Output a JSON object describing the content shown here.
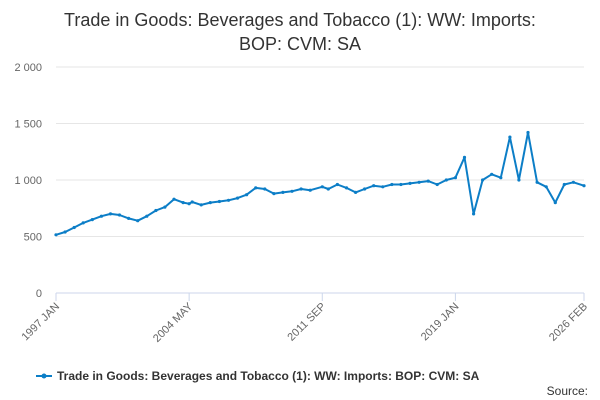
{
  "chart_data": {
    "type": "line",
    "title_lines": [
      "Trade in Goods: Beverages and Tobacco (1): WW: Imports:",
      "BOP: CVM: SA"
    ],
    "series": [
      {
        "name": "Trade in Goods: Beverages and Tobacco (1): WW: Imports: BOP: CVM: SA",
        "color": "#0c7ec7",
        "x": [
          "1997 JAN",
          "1997 JUL",
          "1998 JAN",
          "1998 JUL",
          "1999 JAN",
          "1999 JUL",
          "2000 JAN",
          "2000 JUL",
          "2001 JAN",
          "2001 JUL",
          "2002 JAN",
          "2002 JUL",
          "2003 JAN",
          "2003 JUL",
          "2004 JAN",
          "2004 MAY",
          "2004 JUL",
          "2005 JAN",
          "2005 JUL",
          "2006 JAN",
          "2006 JUL",
          "2007 JAN",
          "2007 JUL",
          "2008 JAN",
          "2008 JUL",
          "2009 JAN",
          "2009 JUL",
          "2010 JAN",
          "2010 JUL",
          "2011 JAN",
          "2011 SEP",
          "2012 JAN",
          "2012 JUL",
          "2013 JAN",
          "2013 JUL",
          "2014 JAN",
          "2014 JUL",
          "2015 JAN",
          "2015 JUL",
          "2016 JAN",
          "2016 JUL",
          "2017 JAN",
          "2017 JUL",
          "2018 JAN",
          "2018 JUL",
          "2019 JAN",
          "2019 JUL",
          "2020 JAN",
          "2020 JUL",
          "2021 JAN",
          "2021 JUL",
          "2022 JAN",
          "2022 JUL",
          "2023 JAN",
          "2023 JUL",
          "2024 JAN",
          "2024 JUL",
          "2025 JAN",
          "2025 JUL",
          "2026 FEB"
        ],
        "values": [
          515,
          540,
          580,
          620,
          650,
          680,
          700,
          690,
          660,
          640,
          680,
          730,
          760,
          830,
          800,
          790,
          805,
          780,
          800,
          810,
          820,
          840,
          870,
          930,
          920,
          880,
          890,
          900,
          920,
          910,
          940,
          920,
          960,
          930,
          890,
          920,
          950,
          940,
          960,
          960,
          970,
          980,
          990,
          960,
          1000,
          1020,
          1200,
          700,
          1000,
          1050,
          1020,
          1380,
          1000,
          1420,
          980,
          940,
          800,
          960,
          980,
          950
        ]
      }
    ],
    "x_ticks": [
      "1997 JAN",
      "2004 MAY",
      "2011 SEP",
      "2019 JAN",
      "2026 FEB"
    ],
    "y_ticks": [
      "0",
      "500",
      "1 000",
      "1 500",
      "2 000"
    ],
    "ylim": [
      0,
      2000
    ],
    "grid": "horizontal",
    "legend_position": "bottom",
    "source_label": "Source:"
  }
}
